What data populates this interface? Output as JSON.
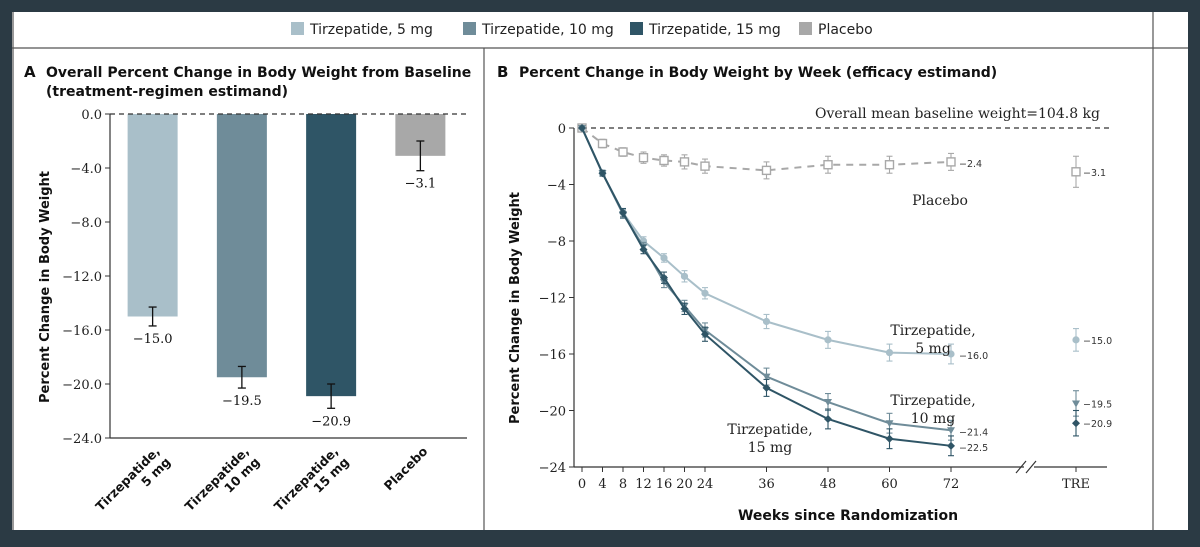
{
  "legend": [
    {
      "label": "Tirzepatide, 5 mg",
      "color": "#a9bfc9"
    },
    {
      "label": "Tirzepatide, 10 mg",
      "color": "#6f8c99"
    },
    {
      "label": "Tirzepatide, 15 mg",
      "color": "#2f5566"
    },
    {
      "label": "Placebo",
      "color": "#a8a8a8"
    }
  ],
  "chart_data": [
    {
      "type": "bar",
      "panel_letter": "A",
      "title": "Overall Percent Change in Body Weight from Baseline",
      "subtitle": "(treatment-regimen estimand)",
      "ylabel": "Percent Change in Body Weight",
      "ylim": [
        -24,
        0
      ],
      "yticks": [
        "0.0",
        "-4.0",
        "-8.0",
        "-12.0",
        "-16.0",
        "-20.0",
        "-24.0"
      ],
      "categories": [
        [
          "Tirzepatide,",
          "5 mg"
        ],
        [
          "Tirzepatide,",
          "10 mg"
        ],
        [
          "Tirzepatide,",
          "15 mg"
        ],
        [
          "Placebo"
        ]
      ],
      "values": [
        -15.0,
        -19.5,
        -20.9,
        -3.1
      ],
      "value_labels": [
        "−15.0",
        "−19.5",
        "−20.9",
        "−3.1"
      ],
      "errors": [
        0.7,
        0.8,
        0.9,
        1.1
      ],
      "colors": [
        "#a9bfc9",
        "#6f8c99",
        "#2f5566",
        "#a8a8a8"
      ]
    },
    {
      "type": "line",
      "panel_letter": "B",
      "title": "Percent Change in Body Weight by Week (efficacy estimand)",
      "xlabel": "Weeks since Randomization",
      "ylabel": "Percent Change in Body Weight",
      "ylim": [
        -24,
        0
      ],
      "yticks": [
        "0",
        "-4",
        "-8",
        "-12",
        "-16",
        "-20",
        "-24"
      ],
      "xticks": [
        "0",
        "4",
        "8",
        "12",
        "16",
        "20",
        "24",
        "36",
        "48",
        "60",
        "72"
      ],
      "tre_label": "TRE",
      "baseline_note": "Overall mean baseline weight=104.8 kg",
      "series": [
        {
          "name": "Placebo",
          "label_lines": [
            "Placebo"
          ],
          "color": "#a8a8a8",
          "marker": "square-open",
          "dashed": true,
          "x": [
            0,
            4,
            8,
            12,
            16,
            20,
            24,
            36,
            48,
            60,
            72
          ],
          "values": [
            0,
            -1.1,
            -1.7,
            -2.1,
            -2.3,
            -2.4,
            -2.7,
            -3.0,
            -2.6,
            -2.6,
            -2.4
          ],
          "err": [
            0,
            0.3,
            0.3,
            0.4,
            0.4,
            0.5,
            0.5,
            0.6,
            0.6,
            0.6,
            0.6
          ],
          "end_label": "−2.4",
          "tre_value": -3.1,
          "tre_err": 1.1,
          "tre_label": "−3.1"
        },
        {
          "name": "Tirzepatide, 5 mg",
          "label_lines": [
            "Tirzepatide,",
            "5 mg"
          ],
          "color": "#a9bfc9",
          "marker": "circle",
          "x": [
            0,
            4,
            8,
            12,
            16,
            20,
            24,
            36,
            48,
            60,
            72
          ],
          "values": [
            0,
            -3.2,
            -6.0,
            -8.0,
            -9.2,
            -10.5,
            -11.7,
            -13.7,
            -15.0,
            -15.9,
            -16.0
          ],
          "err": [
            0,
            0.2,
            0.3,
            0.3,
            0.3,
            0.4,
            0.4,
            0.5,
            0.6,
            0.6,
            0.7
          ],
          "end_label": "−16.0",
          "tre_value": -15.0,
          "tre_err": 0.8,
          "tre_label": "−15.0"
        },
        {
          "name": "Tirzepatide, 10 mg",
          "label_lines": [
            "Tirzepatide,",
            "10 mg"
          ],
          "color": "#6f8c99",
          "marker": "triangle",
          "x": [
            0,
            4,
            8,
            12,
            16,
            20,
            24,
            36,
            48,
            60,
            72
          ],
          "values": [
            0,
            -3.2,
            -6.1,
            -8.4,
            -10.9,
            -12.6,
            -14.3,
            -17.6,
            -19.4,
            -20.9,
            -21.4
          ],
          "err": [
            0,
            0.2,
            0.3,
            0.3,
            0.4,
            0.4,
            0.5,
            0.6,
            0.6,
            0.7,
            0.7
          ],
          "end_label": "−21.4",
          "tre_value": -19.5,
          "tre_err": 0.9,
          "tre_label": "−19.5"
        },
        {
          "name": "Tirzepatide, 15 mg",
          "label_lines": [
            "Tirzepatide,",
            "15 mg"
          ],
          "color": "#2f5566",
          "marker": "diamond",
          "x": [
            0,
            4,
            8,
            12,
            16,
            20,
            24,
            36,
            48,
            60,
            72
          ],
          "values": [
            0,
            -3.2,
            -6.0,
            -8.6,
            -10.6,
            -12.8,
            -14.6,
            -18.4,
            -20.6,
            -22.0,
            -22.5
          ],
          "err": [
            0,
            0.2,
            0.3,
            0.3,
            0.4,
            0.4,
            0.5,
            0.6,
            0.7,
            0.7,
            0.7
          ],
          "end_label": "−22.5",
          "tre_value": -20.9,
          "tre_err": 0.9,
          "tre_label": "−20.9"
        }
      ]
    }
  ]
}
